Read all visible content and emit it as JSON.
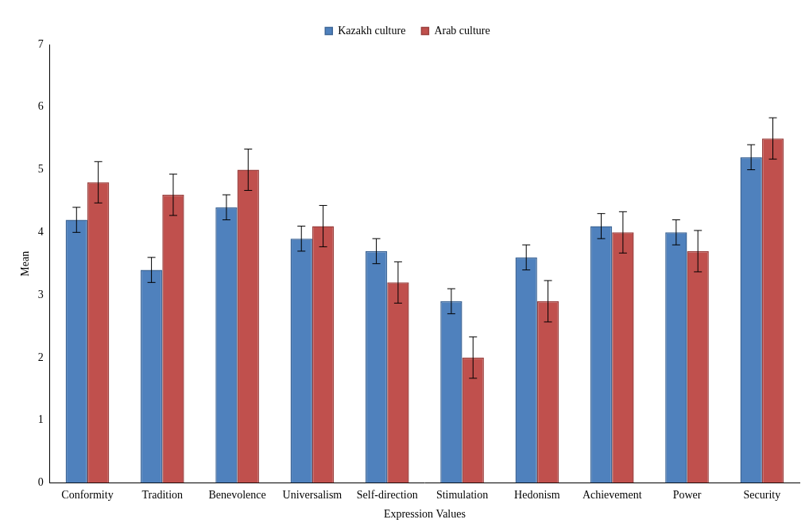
{
  "chart_data": {
    "type": "bar",
    "categories": [
      "Conformity",
      "Tradition",
      "Benevolence",
      "Universalism",
      "Self-direction",
      "Stimulation",
      "Hedonism",
      "Achievement",
      "Power",
      "Security"
    ],
    "series": [
      {
        "name": "Kazakh culture",
        "color": "#4f81bd",
        "values": [
          4.2,
          3.4,
          4.4,
          3.9,
          3.7,
          2.9,
          3.6,
          4.1,
          4.0,
          5.2
        ],
        "errors": [
          0.2,
          0.2,
          0.2,
          0.2,
          0.2,
          0.2,
          0.2,
          0.2,
          0.2,
          0.2
        ]
      },
      {
        "name": "Arab culture",
        "color": "#c0504d",
        "values": [
          4.8,
          4.6,
          5.0,
          4.1,
          3.2,
          2.0,
          2.9,
          4.0,
          3.7,
          5.5
        ],
        "errors": [
          0.33,
          0.33,
          0.33,
          0.33,
          0.33,
          0.33,
          0.33,
          0.33,
          0.33,
          0.33
        ]
      }
    ],
    "x_label": "Expression Values",
    "y_label": "Mean",
    "ylim": [
      0,
      7
    ],
    "yticks": [
      0,
      1,
      2,
      3,
      4,
      5,
      6,
      7
    ],
    "grid": false,
    "legend": "top"
  }
}
